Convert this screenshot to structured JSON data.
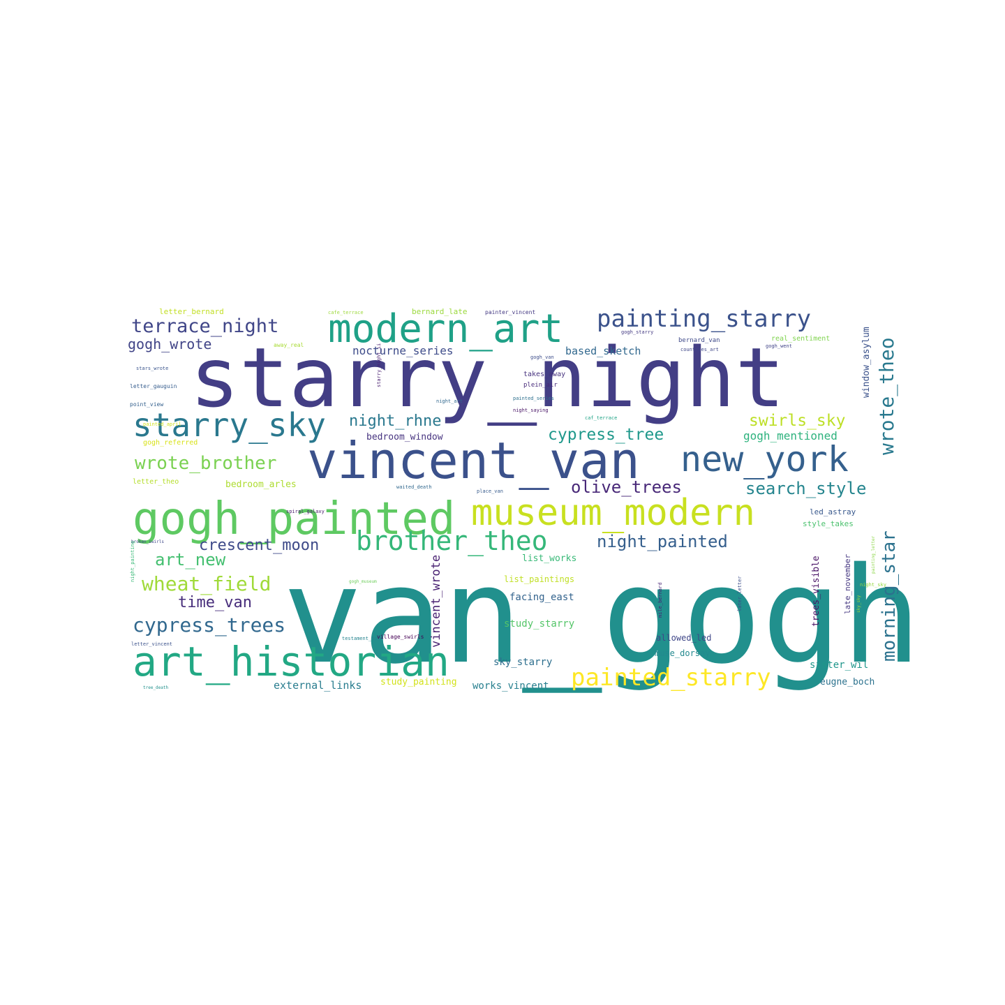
{
  "words": [
    {
      "text": "van_gogh",
      "color": "#21908d"
    },
    {
      "text": "starry_night",
      "color": "#433e85"
    },
    {
      "text": "vincent_van",
      "color": "#3b518b"
    },
    {
      "text": "gogh_painted",
      "color": "#5ec962"
    },
    {
      "text": "art_historian",
      "color": "#22a884"
    },
    {
      "text": "museum_modern",
      "color": "#c8e020"
    },
    {
      "text": "modern_art",
      "color": "#1fa187"
    },
    {
      "text": "new_york",
      "color": "#35608d"
    },
    {
      "text": "starry_sky",
      "color": "#2a788e"
    },
    {
      "text": "brother_theo",
      "color": "#35b779"
    },
    {
      "text": "painting_starry",
      "color": "#3b528b"
    },
    {
      "text": "painted_starry",
      "color": "#fde725"
    },
    {
      "text": "cypress_trees",
      "color": "#31688e"
    },
    {
      "text": "terrace_night",
      "color": "#404688"
    },
    {
      "text": "wrote_brother",
      "color": "#7ad151"
    },
    {
      "text": "wheat_field",
      "color": "#a0da39"
    },
    {
      "text": "crescent_moon",
      "color": "#3e4a89"
    },
    {
      "text": "night_painted",
      "color": "#355f8d"
    },
    {
      "text": "olive_trees",
      "color": "#482878"
    },
    {
      "text": "search_style",
      "color": "#25858e"
    },
    {
      "text": "morning_star",
      "color": "#2c728e"
    },
    {
      "text": "wrote_theo",
      "color": "#29798e"
    },
    {
      "text": "swirls_sky",
      "color": "#bddf26"
    },
    {
      "text": "cypress_tree",
      "color": "#1f988b"
    },
    {
      "text": "night_rhne",
      "color": "#2a788e"
    },
    {
      "text": "art_new",
      "color": "#44bf70"
    },
    {
      "text": "time_van",
      "color": "#472d7b"
    },
    {
      "text": "gogh_wrote",
      "color": "#414487"
    },
    {
      "text": "gogh_mentioned",
      "color": "#2db27d"
    },
    {
      "text": "nocturne_series",
      "color": "#3e4c8a"
    },
    {
      "text": "based_sketch",
      "color": "#31688e"
    },
    {
      "text": "bedroom_window",
      "color": "#46337f"
    },
    {
      "text": "bedroom_arles",
      "color": "#addc30"
    },
    {
      "text": "external_links",
      "color": "#287c8e"
    },
    {
      "text": "study_painting",
      "color": "#d2e21b"
    },
    {
      "text": "works_vincent",
      "color": "#277f8e"
    },
    {
      "text": "sky_starry",
      "color": "#2e6f8e"
    },
    {
      "text": "facing_east",
      "color": "#33638d"
    },
    {
      "text": "list_works",
      "color": "#38b977"
    },
    {
      "text": "list_paintings",
      "color": "#c0df25"
    },
    {
      "text": "study_starry",
      "color": "#54c568"
    },
    {
      "text": "muse_dorsay",
      "color": "#23898e"
    },
    {
      "text": "allowed_led",
      "color": "#3f4788"
    },
    {
      "text": "eugne_boch",
      "color": "#2c728e"
    },
    {
      "text": "sister_wil",
      "color": "#1f968b"
    },
    {
      "text": "vincent_wrote",
      "color": "#482071"
    },
    {
      "text": "trees_visible",
      "color": "#471164"
    },
    {
      "text": "window_asylum",
      "color": "#3b528b"
    },
    {
      "text": "late_november",
      "color": "#453781"
    },
    {
      "text": "letter_bernard",
      "color": "#c2df23"
    },
    {
      "text": "bernard_late",
      "color": "#9bd93c"
    },
    {
      "text": "bernard_van",
      "color": "#3e4989"
    },
    {
      "text": "real_sentiment",
      "color": "#7fd34e"
    },
    {
      "text": "takes_away",
      "color": "#46327e"
    },
    {
      "text": "plein_air",
      "color": "#472a7a"
    },
    {
      "text": "letter_theo",
      "color": "#b5de2b"
    },
    {
      "text": "gogh_referred",
      "color": "#d8e219"
    },
    {
      "text": "led_astray",
      "color": "#38588c"
    },
    {
      "text": "style_takes",
      "color": "#4ac16d"
    },
    {
      "text": "away_real",
      "color": "#a8db34"
    },
    {
      "text": "cafe_terrace",
      "color": "#9dd93b"
    },
    {
      "text": "painter_vincent",
      "color": "#443983"
    },
    {
      "text": "gogh_starry",
      "color": "#443a83"
    },
    {
      "text": "countries_art",
      "color": "#3f4788"
    },
    {
      "text": "gogh_went",
      "color": "#414487"
    },
    {
      "text": "gogh_van",
      "color": "#3d4d8a"
    },
    {
      "text": "letter_gauguin",
      "color": "#365d8d"
    },
    {
      "text": "stars_wrote",
      "color": "#3a548c"
    },
    {
      "text": "point_view",
      "color": "#34608d"
    },
    {
      "text": "night_art",
      "color": "#31688e"
    },
    {
      "text": "painted_series",
      "color": "#2d708e"
    },
    {
      "text": "night_saying",
      "color": "#471365"
    },
    {
      "text": "caf_terrace",
      "color": "#20a386"
    },
    {
      "text": "painted_april",
      "color": "#d0e11c"
    },
    {
      "text": "spiral_galaxy",
      "color": "#481a6c"
    },
    {
      "text": "gogh_museum",
      "color": "#6ccd5a"
    },
    {
      "text": "testament_boch",
      "color": "#25838e"
    },
    {
      "text": "village_swirls",
      "color": "#440154"
    },
    {
      "text": "letter_vincent",
      "color": "#3b528b"
    },
    {
      "text": "tree_death",
      "color": "#21918c"
    },
    {
      "text": "broken_swirls",
      "color": "#3f4788"
    },
    {
      "text": "waited_death",
      "color": "#31688e"
    },
    {
      "text": "place_van",
      "color": "#375a8c"
    },
    {
      "text": "night_painting",
      "color": "#38b977"
    },
    {
      "text": "sky_sky",
      "color": "#a5db36"
    },
    {
      "text": "mile_bernard",
      "color": "#482374"
    },
    {
      "text": "later_letter",
      "color": "#3d4e8a"
    },
    {
      "text": "night_sky",
      "color": "#95d840"
    },
    {
      "text": "painting_letter",
      "color": "#8bd646"
    },
    {
      "text": "starry_night_ii",
      "color": "#481d6f"
    }
  ]
}
